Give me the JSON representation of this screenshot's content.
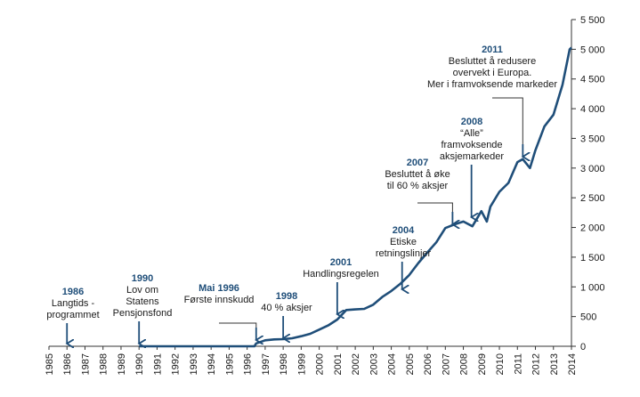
{
  "chart_data": {
    "type": "line",
    "title": "",
    "xlabel": "",
    "ylabel": "",
    "xlim": [
      1985,
      2014
    ],
    "ylim": [
      0,
      5500
    ],
    "grid": false,
    "y_ticks": [
      "0",
      "500",
      "1 000",
      "1 500",
      "2 000",
      "2 500",
      "3 000",
      "3 500",
      "4 000",
      "4 500",
      "5 000",
      "5 500"
    ],
    "y_tick_values": [
      0,
      500,
      1000,
      1500,
      2000,
      2500,
      3000,
      3500,
      4000,
      4500,
      5000,
      5500
    ],
    "x_ticks": [
      "1985",
      "1986",
      "1987",
      "1988",
      "1989",
      "1990",
      "1991",
      "1992",
      "1993",
      "1994",
      "1995",
      "1996",
      "1997",
      "1998",
      "1999",
      "2000",
      "2001",
      "2002",
      "2003",
      "2004",
      "2005",
      "2006",
      "2007",
      "2008",
      "2009",
      "2010",
      "2011",
      "2012",
      "2013",
      "2014"
    ],
    "line_color": "#1f4e79",
    "series": [
      {
        "x": [
          1990.0,
          1996.4,
          1996.5,
          1997.0,
          1997.5,
          1998.0,
          1998.5,
          1999.0,
          1999.5,
          2000.0,
          2000.5,
          2001.0,
          2001.5,
          2002.0,
          2002.5,
          2003.0,
          2003.5,
          2004.0,
          2004.5,
          2005.0,
          2005.5,
          2006.0,
          2006.5,
          2007.0,
          2007.5,
          2008.0,
          2008.5,
          2009.0,
          2009.3,
          2009.5,
          2010.0,
          2010.5,
          2011.0,
          2011.3,
          2011.7,
          2012.0,
          2012.5,
          2013.0,
          2013.5,
          2013.9,
          2014.0
        ],
        "values": [
          0,
          0,
          48,
          100,
          115,
          120,
          135,
          170,
          210,
          280,
          350,
          450,
          610,
          620,
          630,
          700,
          830,
          930,
          1050,
          1200,
          1400,
          1580,
          1750,
          1990,
          2050,
          2100,
          2020,
          2275,
          2100,
          2350,
          2600,
          2750,
          3100,
          3150,
          3000,
          3300,
          3700,
          3900,
          4400,
          5000,
          5030
        ]
      }
    ],
    "annotations": [
      {
        "year": "1986",
        "lines": [
          "Langtids -",
          "programmet"
        ],
        "x": 1986.0,
        "y": 0
      },
      {
        "year": "1990",
        "lines": [
          "Lov om",
          "Statens",
          "Pensjonsfond"
        ],
        "x": 1990.0,
        "y": 0
      },
      {
        "year": "Mai 1996",
        "lines": [
          "Første innskudd"
        ],
        "x": 1996.5,
        "y": 48
      },
      {
        "year": "1998",
        "lines": [
          "40 % aksjer"
        ],
        "x": 1998.0,
        "y": 120
      },
      {
        "year": "2001",
        "lines": [
          "Handlingsregelen"
        ],
        "x": 2001.0,
        "y": 450
      },
      {
        "year": "2004",
        "lines": [
          "Etiske",
          "retningslinjer"
        ],
        "x": 2004.6,
        "y": 1000
      },
      {
        "year": "2007",
        "lines": [
          "Besluttet å øke",
          "til 60 % aksjer"
        ],
        "x": 2007.4,
        "y": 2020
      },
      {
        "year": "2008",
        "lines": [
          "“Alle”",
          "framvoksende",
          "aksjemarkeder"
        ],
        "x": 2008.45,
        "y": 2050
      },
      {
        "year": "2011",
        "lines": [
          "Besluttet å redusere",
          "overvekt i Europa.",
          "Mer i framvoksende markeder"
        ],
        "x": 2011.3,
        "y": 3150
      }
    ]
  }
}
